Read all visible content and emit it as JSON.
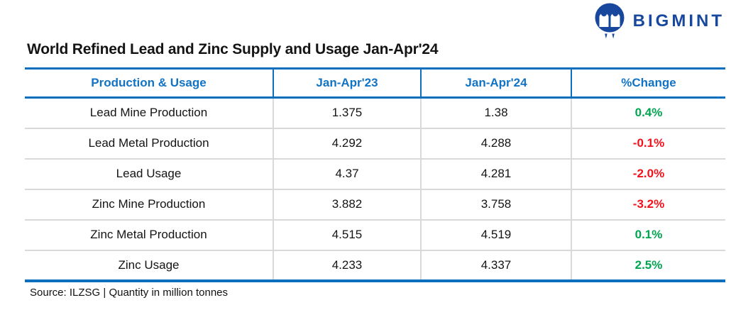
{
  "logo": {
    "brand": "BIGMINT",
    "icon": "bigmint-monogram-icon"
  },
  "title": "World Refined Lead and Zinc Supply and Usage Jan-Apr'24",
  "table": {
    "columns": [
      "Production & Usage",
      "Jan-Apr'23",
      "Jan-Apr'24",
      "%Change"
    ],
    "rows": [
      {
        "label": "Lead Mine Production",
        "jan_apr_23": "1.375",
        "jan_apr_24": "1.38",
        "change": "0.4%",
        "trend": "positive"
      },
      {
        "label": "Lead Metal Production",
        "jan_apr_23": "4.292",
        "jan_apr_24": "4.288",
        "change": "-0.1%",
        "trend": "negative"
      },
      {
        "label": "Lead Usage",
        "jan_apr_23": "4.37",
        "jan_apr_24": "4.281",
        "change": "-2.0%",
        "trend": "negative"
      },
      {
        "label": "Zinc Mine Production",
        "jan_apr_23": "3.882",
        "jan_apr_24": "3.758",
        "change": "-3.2%",
        "trend": "negative"
      },
      {
        "label": "Zinc Metal Production",
        "jan_apr_23": "4.515",
        "jan_apr_24": "4.519",
        "change": "0.1%",
        "trend": "positive"
      },
      {
        "label": "Zinc Usage",
        "jan_apr_23": "4.233",
        "jan_apr_24": "4.337",
        "change": "2.5%",
        "trend": "positive"
      }
    ]
  },
  "footer": {
    "source_note": "Source: ILZSG | Quantity in million tonnes"
  },
  "colors": {
    "header_blue": "#1273C4",
    "border_blue": "#0B6FBE",
    "positive_green": "#00A64F",
    "negative_red": "#F2121B",
    "grid_gray": "#D9D9D9",
    "logo_navy": "#17489E",
    "text_black": "#141414"
  },
  "chart_data": {
    "type": "table",
    "title": "World Refined Lead and Zinc Supply and Usage Jan-Apr'24",
    "columns": [
      "Production & Usage",
      "Jan-Apr'23",
      "Jan-Apr'24",
      "%Change"
    ],
    "rows": [
      [
        "Lead Mine Production",
        1.375,
        1.38,
        "0.4%"
      ],
      [
        "Lead Metal Production",
        4.292,
        4.288,
        "-0.1%"
      ],
      [
        "Lead Usage",
        4.37,
        4.281,
        "-2.0%"
      ],
      [
        "Zinc Mine Production",
        3.882,
        3.758,
        "-3.2%"
      ],
      [
        "Zinc Metal Production",
        4.515,
        4.519,
        "0.1%"
      ],
      [
        "Zinc Usage",
        4.233,
        4.337,
        "2.5%"
      ]
    ],
    "units": "million tonnes",
    "source": "ILZSG"
  }
}
